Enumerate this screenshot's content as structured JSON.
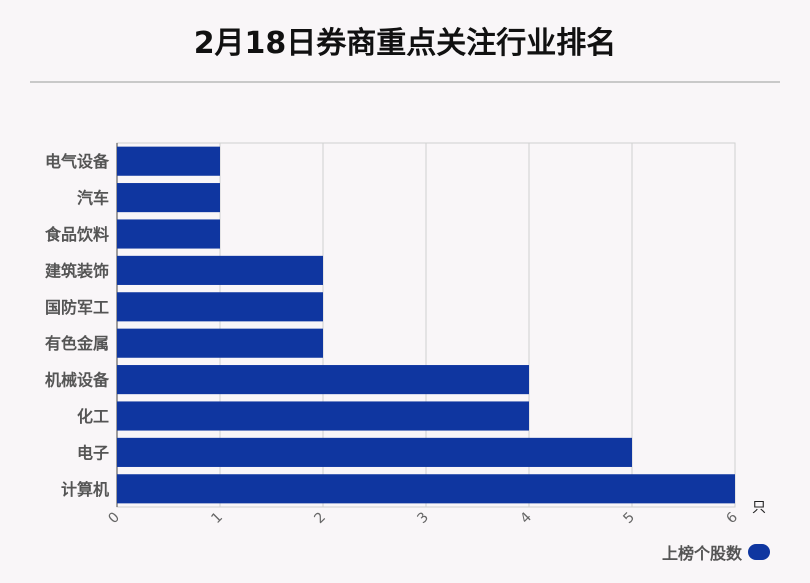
{
  "title": "2月18日券商重点关注行业排名",
  "legend": {
    "label": "上榜个股数",
    "color": "#0f36a0"
  },
  "chart_data": {
    "type": "bar",
    "orientation": "horizontal",
    "categories": [
      "电气设备",
      "汽车",
      "食品饮料",
      "建筑装饰",
      "国防军工",
      "有色金属",
      "机械设备",
      "化工",
      "电子",
      "计算机"
    ],
    "series": [
      {
        "name": "上榜个股数",
        "values": [
          1,
          1,
          1,
          2,
          2,
          2,
          4,
          4,
          5,
          6
        ]
      }
    ],
    "xlim": [
      0,
      6
    ],
    "xticks": [
      "0",
      "1",
      "2",
      "3",
      "4",
      "5",
      "6"
    ],
    "x_unit": "只",
    "grid": true,
    "legend_position": "bottom-right",
    "bar_color": "#0f36a0"
  }
}
